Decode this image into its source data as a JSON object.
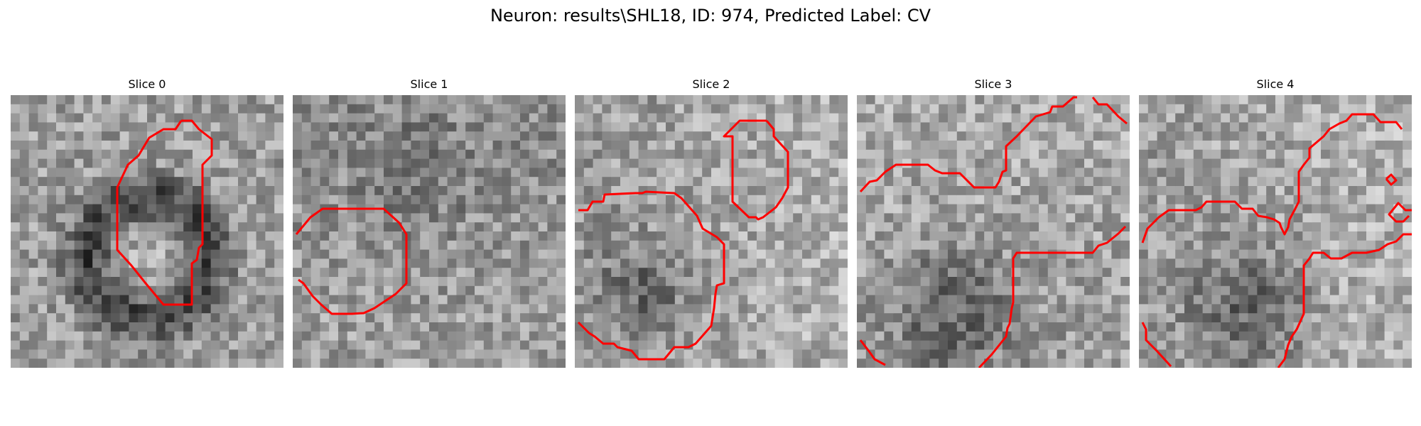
{
  "figure": {
    "title": "Neuron: results\\SHL18, ID: 974, Predicted Label: CV"
  },
  "contour_color": "#ff0000",
  "image_color": "grayscale",
  "slices": [
    {
      "label": "Slice 0"
    },
    {
      "label": "Slice 1"
    },
    {
      "label": "Slice 2"
    },
    {
      "label": "Slice 3"
    },
    {
      "label": "Slice 4"
    }
  ]
}
